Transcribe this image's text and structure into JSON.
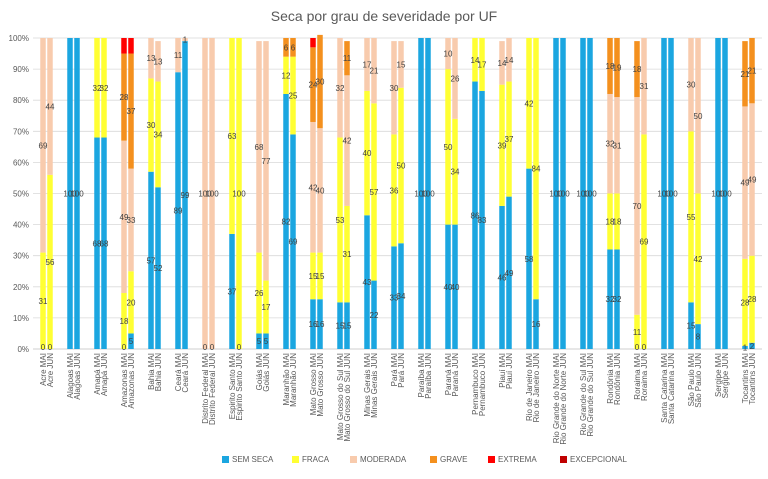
{
  "chart_data": {
    "type": "bar",
    "stacked": true,
    "title": "Seca por grau de severidade por UF",
    "ylim": [
      0,
      100
    ],
    "y_ticks": [
      "0%",
      "10%",
      "20%",
      "30%",
      "40%",
      "50%",
      "60%",
      "70%",
      "80%",
      "90%",
      "100%"
    ],
    "grid": true,
    "legend_position": "bottom",
    "series_colors": [
      "#1BA6E0",
      "#FFFF33",
      "#F8CBAD",
      "#F4901E",
      "#FF0000",
      "#C00000"
    ],
    "categories": [
      "Acre MAI",
      "Acre JUN",
      "Alagoas MAI",
      "Alagoas JUN",
      "Amapá MAI",
      "Amapá JUN",
      "Amazonas MAI",
      "Amazonas JUN",
      "Bahia MAI",
      "Bahia JUN",
      "Ceará MAI",
      "Ceará JUN",
      "Distrito Federal MAI",
      "Distrito Federal JUN",
      "Espirito Santo MAI",
      "Espirito Santo JUN",
      "Goiás MAI",
      "Goiás JUN",
      "Maranhão MAI",
      "Maranhão JUN",
      "Mato Grosso MAI",
      "Mato Grosso JUN",
      "Mato Grosso do Sul MAI",
      "Mato Grosso do Sul JUN",
      "Minas Gerais MAI",
      "Minas Gerais JUN",
      "Pará MAI",
      "Pará JUN",
      "Paraíba MAI",
      "Paraíba JUN",
      "Paraná MAI",
      "Paraná JUN",
      "Pernambuco MAI",
      "Pernambuco JUN",
      "Piauí MAI",
      "Piauí JUN",
      "Rio de Janeiro MAI",
      "Rio de Janeiro JUN",
      "Rio Grande do Norte MAI",
      "Rio Grande do Norte JUN",
      "Rio Grande do Sul MAI",
      "Rio Grande do Sul JUN",
      "Rondônia MAI",
      "Rondônia JUN",
      "Roraima MAI",
      "Roraima JUN",
      "Santa Catarina MAI",
      "Santa Catarina JUN",
      "São Paulo MAI",
      "São Paulo JUN",
      "Sergipe MAI",
      "Sergipe JUN",
      "Tocantins MAI",
      "Tocantins JUN"
    ],
    "series": [
      {
        "name": "SEM SECA",
        "values": [
          0,
          0,
          100,
          100,
          68,
          68,
          0,
          5,
          57,
          52,
          89,
          99,
          0,
          0,
          37,
          0,
          5,
          5,
          82,
          69,
          16,
          16,
          15,
          15,
          43,
          22,
          33,
          34,
          100,
          100,
          40,
          40,
          86,
          83,
          46,
          49,
          58,
          16,
          100,
          100,
          100,
          100,
          32,
          32,
          0,
          0,
          100,
          100,
          15,
          8,
          100,
          100,
          1,
          2
        ]
      },
      {
        "name": "FRACA",
        "values": [
          31,
          56,
          0,
          0,
          32,
          32,
          18,
          20,
          30,
          34,
          0,
          0,
          0,
          0,
          63,
          100,
          26,
          17,
          12,
          25,
          15,
          15,
          53,
          31,
          40,
          57,
          36,
          50,
          0,
          0,
          50,
          34,
          14,
          17,
          39,
          37,
          42,
          84,
          0,
          0,
          0,
          0,
          18,
          18,
          11,
          69,
          0,
          0,
          55,
          42,
          0,
          0,
          28,
          28
        ]
      },
      {
        "name": "MODERADA",
        "values": [
          69,
          44,
          0,
          0,
          0,
          0,
          49,
          33,
          13,
          13,
          11,
          1,
          100,
          100,
          0,
          0,
          68,
          77,
          0,
          0,
          42,
          40,
          32,
          42,
          17,
          21,
          30,
          15,
          0,
          0,
          10,
          26,
          0,
          0,
          14,
          14,
          0,
          0,
          0,
          0,
          0,
          0,
          32,
          31,
          70,
          31,
          0,
          0,
          30,
          50,
          0,
          0,
          49,
          49
        ]
      },
      {
        "name": "GRAVE",
        "values": [
          0,
          0,
          0,
          0,
          0,
          0,
          28,
          37,
          0,
          0,
          0,
          0,
          0,
          0,
          0,
          0,
          0,
          0,
          6,
          6,
          24,
          30,
          0,
          11,
          0,
          0,
          0,
          0,
          0,
          0,
          0,
          0,
          0,
          0,
          0,
          0,
          0,
          0,
          0,
          0,
          0,
          0,
          18,
          19,
          18,
          0,
          0,
          0,
          0,
          0,
          0,
          0,
          21,
          21
        ]
      },
      {
        "name": "EXTREMA",
        "values": [
          0,
          0,
          0,
          0,
          0,
          0,
          5,
          5,
          0,
          0,
          0,
          0,
          0,
          0,
          0,
          0,
          0,
          0,
          0,
          0,
          3,
          0,
          0,
          0,
          0,
          0,
          0,
          0,
          0,
          0,
          0,
          0,
          0,
          0,
          0,
          0,
          0,
          0,
          0,
          0,
          0,
          0,
          0,
          0,
          0,
          0,
          0,
          0,
          0,
          0,
          0,
          0,
          0,
          0
        ]
      },
      {
        "name": "EXCEPCIONAL",
        "values": [
          0,
          0,
          0,
          0,
          0,
          0,
          0,
          0,
          0,
          0,
          0,
          0,
          0,
          0,
          0,
          0,
          0,
          0,
          0,
          0,
          0,
          0,
          0,
          0,
          0,
          0,
          0,
          0,
          0,
          0,
          0,
          0,
          0,
          0,
          0,
          0,
          0,
          0,
          0,
          0,
          0,
          0,
          0,
          0,
          0,
          0,
          0,
          0,
          0,
          0,
          0,
          0,
          0,
          0
        ]
      }
    ]
  }
}
